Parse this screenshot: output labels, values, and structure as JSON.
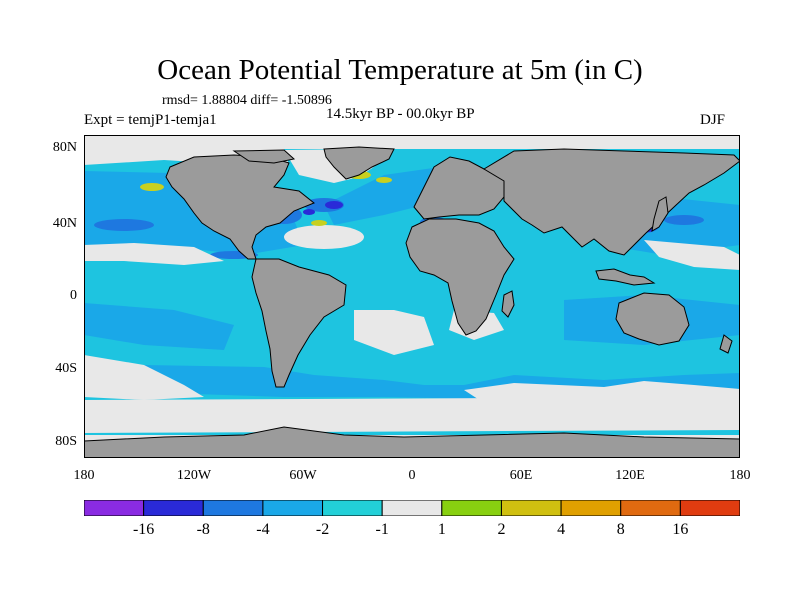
{
  "title": "Ocean Potential Temperature at 5m (in C)",
  "stats": "rmsd= 1.88804 diff= -1.50896",
  "period": "14.5kyr BP - 00.0kyr BP",
  "experiment": "Expt = temjP1-temja1",
  "season": "DJF",
  "lat_ticks": [
    "80N",
    "40N",
    "0",
    "40S",
    "80S"
  ],
  "lon_ticks": [
    "180",
    "120W",
    "60W",
    "0",
    "60E",
    "120E",
    "180"
  ],
  "colorbar": {
    "labels": [
      "-16",
      "-8",
      "-4",
      "-2",
      "-1",
      "1",
      "2",
      "4",
      "8",
      "16"
    ],
    "colors": [
      "#8a2be2",
      "#2a2ad8",
      "#1e78e0",
      "#1aa8e8",
      "#22d0d8",
      "#e8e8e8",
      "#88d010",
      "#d0c010",
      "#e0a000",
      "#e06a10",
      "#e03c10"
    ]
  },
  "palette": {
    "land": "#9b9b9b",
    "ocean_base": "#1ec4e0",
    "cool": "#1aa8e8",
    "strong_cool": "#1e78e0",
    "neutral": "#e8e8e8",
    "warm": "#c8d020",
    "coast": "#000000"
  }
}
